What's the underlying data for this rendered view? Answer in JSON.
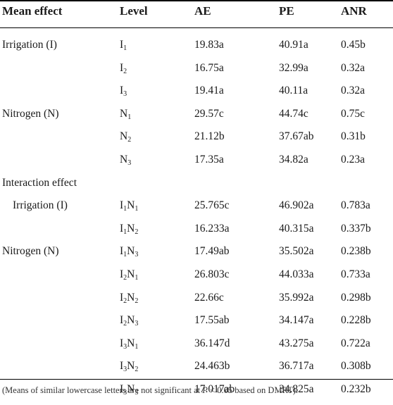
{
  "header": {
    "mean_effect": "Mean effect",
    "level": "Level",
    "ae": "AE",
    "pe": "PE",
    "anr": "ANR"
  },
  "rows": [
    {
      "effect": "Irrigation (I)",
      "l1": "I",
      "s1": "1",
      "l2": "",
      "s2": "",
      "ae": "19.83a",
      "pe": "40.91a",
      "anr": "0.45b"
    },
    {
      "effect": "",
      "l1": "I",
      "s1": "2",
      "l2": "",
      "s2": "",
      "ae": "16.75a",
      "pe": "32.99a",
      "anr": "0.32a"
    },
    {
      "effect": "",
      "l1": "I",
      "s1": "3",
      "l2": "",
      "s2": "",
      "ae": "19.41a",
      "pe": "40.11a",
      "anr": "0.32a"
    },
    {
      "effect": "Nitrogen (N)",
      "l1": "N",
      "s1": "1",
      "l2": "",
      "s2": "",
      "ae": "29.57c",
      "pe": "44.74c",
      "anr": "0.75c"
    },
    {
      "effect": "",
      "l1": "N",
      "s1": "2",
      "l2": "",
      "s2": "",
      "ae": "21.12b",
      "pe": "37.67ab",
      "anr": "0.31b"
    },
    {
      "effect": "",
      "l1": "N",
      "s1": "3",
      "l2": "",
      "s2": "",
      "ae": "17.35a",
      "pe": "34.82a",
      "anr": "0.23a"
    },
    {
      "effect": "Interaction effect",
      "l1": "",
      "s1": "",
      "l2": "",
      "s2": "",
      "ae": "",
      "pe": "",
      "anr": ""
    },
    {
      "effect": "Irrigation (I)",
      "indent": true,
      "l1": "I",
      "s1": "1",
      "l2": "N",
      "s2": "1",
      "ae": "25.765c",
      "pe": "46.902a",
      "anr": "0.783a"
    },
    {
      "effect": "",
      "l1": "I",
      "s1": "1",
      "l2": "N",
      "s2": "2",
      "ae": "16.233a",
      "pe": "40.315a",
      "anr": "0.337b"
    },
    {
      "effect": "Nitrogen (N)",
      "l1": "I",
      "s1": "1",
      "l2": "N",
      "s2": "3",
      "ae": "17.49ab",
      "pe": "35.502a",
      "anr": "0.238b"
    },
    {
      "effect": "",
      "l1": "I",
      "s1": "2",
      "l2": "N",
      "s2": "1",
      "ae": "26.803c",
      "pe": "44.033a",
      "anr": "0.733a"
    },
    {
      "effect": "",
      "l1": "I",
      "s1": "2",
      "l2": "N",
      "s2": "2",
      "ae": "22.66c",
      "pe": "35.992a",
      "anr": "0.298b"
    },
    {
      "effect": "",
      "l1": "I",
      "s1": "2",
      "l2": "N",
      "s2": "3",
      "ae": "17.55ab",
      "pe": "34.147a",
      "anr": "0.228b"
    },
    {
      "effect": "",
      "l1": "I",
      "s1": "3",
      "l2": "N",
      "s2": "1",
      "ae": "36.147d",
      "pe": "43.275a",
      "anr": "0.722a"
    },
    {
      "effect": "",
      "l1": "I",
      "s1": "3",
      "l2": "N",
      "s2": "2",
      "ae": "24.463b",
      "pe": "36.717a",
      "anr": "0.308b"
    },
    {
      "effect": "",
      "l1": "I",
      "s1": "3",
      "l2": "N",
      "s2": "3",
      "ae": "17.017ab",
      "pe": "34.825a",
      "anr": "0.232b"
    }
  ],
  "footnote": {
    "before": "(Means of similar lowercase letters are not significant at ",
    "p": "P",
    "after": " < 0.05 based on DMRT)."
  }
}
